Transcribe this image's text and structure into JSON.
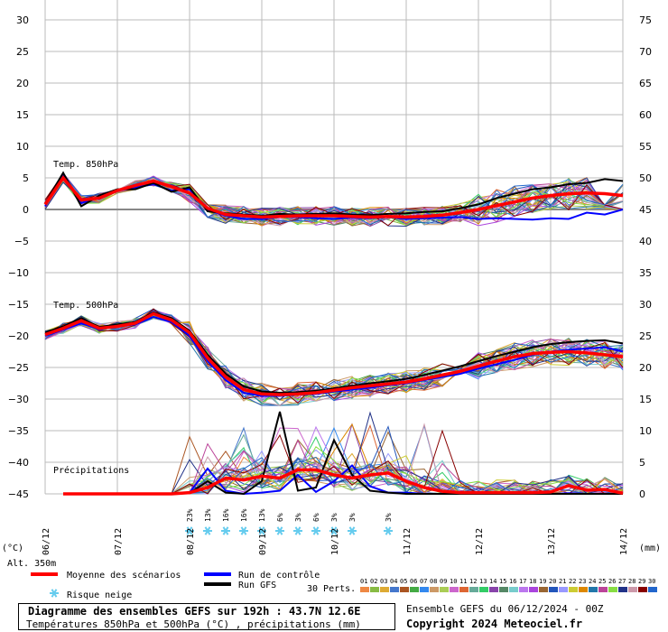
{
  "chart_data": {
    "type": "line",
    "x_tick_labels": [
      "07/12",
      "08/12",
      "09/12",
      "10/12",
      "11/12",
      "12/12",
      "13/12",
      "14/12"
    ],
    "x_first_label": "06/12",
    "left_axis_unit": "(°C)",
    "right_axis_unit": "(mm)",
    "left_ticks": [
      30,
      25,
      20,
      15,
      10,
      5,
      0,
      -5,
      -10,
      -15,
      -20,
      -25,
      -30,
      -35,
      -40,
      -45
    ],
    "right_ticks": [
      75,
      70,
      65,
      60,
      55,
      50,
      45,
      40,
      35,
      30,
      25,
      20,
      15,
      10,
      5,
      0
    ],
    "left_range": [
      -45,
      30
    ],
    "right_range": [
      0,
      75
    ],
    "altitude_label": "Alt. 350m",
    "section_labels": {
      "t850": "Temp. 850hPa",
      "t500": "Temp. 500hPa",
      "precip": "Précipitations"
    },
    "colors": {
      "mean": "#ff0000",
      "control": "#0000ff",
      "gfs": "#000000",
      "snow": "#66ccee"
    },
    "snow_risk": [
      {
        "t": 2.25,
        "label": "23%"
      },
      {
        "t": 2.5,
        "label": "13%"
      },
      {
        "t": 2.75,
        "label": "16%"
      },
      {
        "t": 3.0,
        "label": "16%"
      },
      {
        "t": 3.25,
        "label": "13%"
      },
      {
        "t": 3.5,
        "label": "6%"
      },
      {
        "t": 3.75,
        "label": "3%"
      },
      {
        "t": 4.0,
        "label": "6%"
      },
      {
        "t": 4.25,
        "label": "3%"
      },
      {
        "t": 4.5,
        "label": "3%"
      },
      {
        "t": 5.0,
        "label": "3%"
      }
    ],
    "series": {
      "t850_mean": [
        [
          0,
          0.8
        ],
        [
          0.25,
          5
        ],
        [
          0.5,
          1.5
        ],
        [
          0.75,
          1.8
        ],
        [
          1,
          3
        ],
        [
          1.25,
          3.8
        ],
        [
          1.5,
          4.5
        ],
        [
          1.75,
          3.6
        ],
        [
          2,
          2.6
        ],
        [
          2.25,
          0.2
        ],
        [
          2.5,
          -0.8
        ],
        [
          2.75,
          -1
        ],
        [
          3,
          -1.2
        ],
        [
          3.25,
          -1.1
        ],
        [
          3.5,
          -1
        ],
        [
          3.75,
          -1
        ],
        [
          4,
          -1
        ],
        [
          4.25,
          -1.1
        ],
        [
          4.5,
          -1.2
        ],
        [
          4.75,
          -1.1
        ],
        [
          5,
          -1.2
        ],
        [
          5.25,
          -1.1
        ],
        [
          5.5,
          -0.9
        ],
        [
          5.75,
          -0.5
        ],
        [
          6,
          0
        ],
        [
          6.25,
          0.6
        ],
        [
          6.5,
          1.2
        ],
        [
          6.75,
          1.8
        ],
        [
          7,
          2.2
        ],
        [
          7.25,
          2.5
        ],
        [
          7.5,
          2.6
        ],
        [
          7.75,
          2.5
        ],
        [
          8,
          2.2
        ]
      ],
      "t850_control": [
        [
          0,
          0.5
        ],
        [
          0.25,
          5.5
        ],
        [
          0.5,
          1
        ],
        [
          0.75,
          2
        ],
        [
          1,
          3
        ],
        [
          1.25,
          3.5
        ],
        [
          1.5,
          4
        ],
        [
          1.75,
          3
        ],
        [
          2,
          3.2
        ],
        [
          2.25,
          0
        ],
        [
          2.5,
          -1
        ],
        [
          2.75,
          -1.5
        ],
        [
          3,
          -1.5
        ],
        [
          3.25,
          -1.2
        ],
        [
          3.5,
          -1.2
        ],
        [
          3.75,
          -1.4
        ],
        [
          4,
          -1.5
        ],
        [
          4.25,
          -1.3
        ],
        [
          4.5,
          -1.4
        ],
        [
          4.75,
          -1.2
        ],
        [
          5,
          -1.5
        ],
        [
          5.25,
          -1.4
        ],
        [
          5.5,
          -1.3
        ],
        [
          5.75,
          -1.2
        ],
        [
          6,
          -1.5
        ],
        [
          6.25,
          -1.4
        ],
        [
          6.5,
          -1.5
        ],
        [
          6.75,
          -1.6
        ],
        [
          7,
          -1.4
        ],
        [
          7.25,
          -1.5
        ],
        [
          7.5,
          -0.5
        ],
        [
          7.75,
          -0.8
        ],
        [
          8,
          0
        ]
      ],
      "t850_gfs": [
        [
          0,
          1
        ],
        [
          0.25,
          5.8
        ],
        [
          0.5,
          0.5
        ],
        [
          0.75,
          2.2
        ],
        [
          1,
          3.2
        ],
        [
          1.25,
          3.2
        ],
        [
          1.5,
          4.2
        ],
        [
          1.75,
          2.8
        ],
        [
          2,
          3.5
        ],
        [
          2.25,
          -0.3
        ],
        [
          2.5,
          -0.6
        ],
        [
          2.75,
          -0.8
        ],
        [
          3,
          -1
        ],
        [
          3.25,
          -0.7
        ],
        [
          3.5,
          -0.8
        ],
        [
          3.75,
          -0.7
        ],
        [
          4,
          -0.6
        ],
        [
          4.25,
          -0.8
        ],
        [
          4.5,
          -0.9
        ],
        [
          4.75,
          -0.7
        ],
        [
          5,
          -0.6
        ],
        [
          5.25,
          -0.4
        ],
        [
          5.5,
          -0.3
        ],
        [
          5.75,
          0.2
        ],
        [
          6,
          0.8
        ],
        [
          6.25,
          1.8
        ],
        [
          6.5,
          2.5
        ],
        [
          6.75,
          3.2
        ],
        [
          7,
          3.5
        ],
        [
          7.25,
          4
        ],
        [
          7.5,
          4.2
        ],
        [
          7.75,
          4.8
        ],
        [
          8,
          4.5
        ]
      ],
      "t500_mean": [
        [
          0,
          -19.8
        ],
        [
          0.25,
          -18.8
        ],
        [
          0.5,
          -17.6
        ],
        [
          0.75,
          -18.8
        ],
        [
          1,
          -18.5
        ],
        [
          1.25,
          -18
        ],
        [
          1.5,
          -16.5
        ],
        [
          1.75,
          -17.5
        ],
        [
          2,
          -19.5
        ],
        [
          2.25,
          -23.5
        ],
        [
          2.5,
          -26.5
        ],
        [
          2.75,
          -28.5
        ],
        [
          3,
          -29.2
        ],
        [
          3.25,
          -29.3
        ],
        [
          3.5,
          -29.2
        ],
        [
          3.75,
          -29
        ],
        [
          4,
          -28.6
        ],
        [
          4.25,
          -28.2
        ],
        [
          4.5,
          -27.9
        ],
        [
          4.75,
          -27.6
        ],
        [
          5,
          -27.3
        ],
        [
          5.25,
          -26.8
        ],
        [
          5.5,
          -26.2
        ],
        [
          5.75,
          -25.6
        ],
        [
          6,
          -24.8
        ],
        [
          6.25,
          -24
        ],
        [
          6.5,
          -23.3
        ],
        [
          6.75,
          -22.8
        ],
        [
          7,
          -22.6
        ],
        [
          7.25,
          -22.5
        ],
        [
          7.5,
          -22.7
        ],
        [
          7.75,
          -23
        ],
        [
          8,
          -23.3
        ]
      ],
      "t500_control": [
        [
          0,
          -20
        ],
        [
          0.25,
          -19
        ],
        [
          0.5,
          -18
        ],
        [
          0.75,
          -19
        ],
        [
          1,
          -18.5
        ],
        [
          1.25,
          -18.2
        ],
        [
          1.5,
          -17
        ],
        [
          1.75,
          -17.8
        ],
        [
          2,
          -20
        ],
        [
          2.25,
          -24
        ],
        [
          2.5,
          -27
        ],
        [
          2.75,
          -29
        ],
        [
          3,
          -29.5
        ],
        [
          3.25,
          -29.5
        ],
        [
          3.5,
          -29.3
        ],
        [
          3.75,
          -29.2
        ],
        [
          4,
          -28.8
        ],
        [
          4.25,
          -28.5
        ],
        [
          4.5,
          -28.2
        ],
        [
          4.75,
          -27.8
        ],
        [
          5,
          -27.5
        ],
        [
          5.25,
          -27
        ],
        [
          5.5,
          -26.5
        ],
        [
          5.75,
          -26
        ],
        [
          6,
          -25.2
        ],
        [
          6.25,
          -24.5
        ],
        [
          6.5,
          -23.8
        ],
        [
          6.75,
          -23
        ],
        [
          7,
          -22.5
        ],
        [
          7.25,
          -22.2
        ],
        [
          7.5,
          -22
        ],
        [
          7.75,
          -21.8
        ],
        [
          8,
          -22.5
        ]
      ],
      "t500_gfs": [
        [
          0,
          -19.5
        ],
        [
          0.25,
          -18.5
        ],
        [
          0.5,
          -17.2
        ],
        [
          0.75,
          -18.6
        ],
        [
          1,
          -18.2
        ],
        [
          1.25,
          -17.8
        ],
        [
          1.5,
          -16.3
        ],
        [
          1.75,
          -17.2
        ],
        [
          2,
          -19.2
        ],
        [
          2.25,
          -23
        ],
        [
          2.5,
          -26
        ],
        [
          2.75,
          -28
        ],
        [
          3,
          -28.8
        ],
        [
          3.25,
          -29
        ],
        [
          3.5,
          -28.9
        ],
        [
          3.75,
          -28.7
        ],
        [
          4,
          -28.3
        ],
        [
          4.25,
          -27.9
        ],
        [
          4.5,
          -27.5
        ],
        [
          4.75,
          -27.2
        ],
        [
          5,
          -26.8
        ],
        [
          5.25,
          -26.2
        ],
        [
          5.5,
          -25.5
        ],
        [
          5.75,
          -24.8
        ],
        [
          6,
          -24
        ],
        [
          6.25,
          -23.2
        ],
        [
          6.5,
          -22.5
        ],
        [
          6.75,
          -21.8
        ],
        [
          7,
          -21.3
        ],
        [
          7.25,
          -21
        ],
        [
          7.5,
          -20.8
        ],
        [
          7.75,
          -20.7
        ],
        [
          8,
          -21.2
        ]
      ],
      "precip_mean": [
        [
          0.25,
          0
        ],
        [
          1,
          0
        ],
        [
          1.75,
          0
        ],
        [
          2,
          0.2
        ],
        [
          2.25,
          1
        ],
        [
          2.5,
          2.5
        ],
        [
          2.75,
          2.2
        ],
        [
          3,
          2.8
        ],
        [
          3.25,
          2.5
        ],
        [
          3.5,
          3.8
        ],
        [
          3.75,
          3.8
        ],
        [
          4,
          3
        ],
        [
          4.25,
          2.5
        ],
        [
          4.5,
          3
        ],
        [
          4.75,
          3.3
        ],
        [
          5,
          2
        ],
        [
          5.25,
          1
        ],
        [
          5.5,
          0.4
        ],
        [
          5.75,
          0.2
        ],
        [
          6,
          0.2
        ],
        [
          6.25,
          0.2
        ],
        [
          6.5,
          0.2
        ],
        [
          6.75,
          0.2
        ],
        [
          7,
          0.3
        ],
        [
          7.25,
          1.3
        ],
        [
          7.5,
          0.6
        ],
        [
          7.75,
          0.7
        ],
        [
          8,
          0.1
        ]
      ],
      "precip_control": [
        [
          0.25,
          0
        ],
        [
          1,
          0
        ],
        [
          1.75,
          0
        ],
        [
          2,
          0.2
        ],
        [
          2.25,
          4
        ],
        [
          2.5,
          0.5
        ],
        [
          2.75,
          0
        ],
        [
          3,
          0.2
        ],
        [
          3.25,
          0.5
        ],
        [
          3.5,
          3
        ],
        [
          3.75,
          0.3
        ],
        [
          4,
          2
        ],
        [
          4.25,
          4.5
        ],
        [
          4.5,
          1.2
        ],
        [
          4.75,
          0.2
        ],
        [
          5,
          0.2
        ],
        [
          5.25,
          0
        ],
        [
          5.5,
          0
        ],
        [
          5.75,
          0
        ],
        [
          6,
          0
        ],
        [
          6.25,
          0
        ],
        [
          6.5,
          0
        ],
        [
          6.75,
          0
        ],
        [
          7,
          0
        ],
        [
          7.25,
          0.1
        ],
        [
          7.5,
          0
        ],
        [
          7.75,
          0
        ],
        [
          8,
          0
        ]
      ],
      "precip_gfs": [
        [
          0.25,
          0
        ],
        [
          1,
          0
        ],
        [
          1.75,
          0
        ],
        [
          2,
          0.1
        ],
        [
          2.25,
          2
        ],
        [
          2.5,
          0.2
        ],
        [
          2.75,
          0
        ],
        [
          3,
          2
        ],
        [
          3.25,
          13
        ],
        [
          3.5,
          0.5
        ],
        [
          3.75,
          1
        ],
        [
          4,
          8.5
        ],
        [
          4.25,
          3
        ],
        [
          4.5,
          0.5
        ],
        [
          4.75,
          0.2
        ],
        [
          5,
          0
        ],
        [
          5.25,
          0
        ],
        [
          5.5,
          0
        ],
        [
          5.75,
          0
        ],
        [
          6,
          0
        ],
        [
          6.25,
          0
        ],
        [
          6.5,
          0
        ],
        [
          6.75,
          0
        ],
        [
          7,
          0
        ],
        [
          7.25,
          0
        ],
        [
          7.5,
          0
        ],
        [
          7.75,
          0
        ],
        [
          8,
          0
        ]
      ]
    }
  },
  "legend": {
    "mean": "Moyenne des scénarios",
    "control": "Run de contrôle",
    "gfs": "Run GFS",
    "snow": "Risque neige",
    "perts_label": "30 Perts.",
    "pert_numbers": [
      "01",
      "02",
      "03",
      "04",
      "05",
      "06",
      "07",
      "08",
      "09",
      "10",
      "11",
      "12",
      "13",
      "14",
      "15",
      "16",
      "17",
      "18",
      "19",
      "20",
      "21",
      "22",
      "23",
      "24",
      "25",
      "26",
      "27",
      "28",
      "29",
      "30"
    ],
    "pert_colors": [
      "#ee8844",
      "#88bb44",
      "#ddaa33",
      "#4477cc",
      "#aa5522",
      "#44aa44",
      "#3388ee",
      "#cc9966",
      "#aacc55",
      "#cc66cc",
      "#dd6633",
      "#66aa99",
      "#33cc66",
      "#8844aa",
      "#558866",
      "#77cccc",
      "#bb77ee",
      "#aa44dd",
      "#996633",
      "#2255bb",
      "#9999ff",
      "#cccc33",
      "#dd8800",
      "#2277aa",
      "#bb4499",
      "#88dd44",
      "#223388",
      "#cc99aa",
      "#880000",
      "#2266cc"
    ]
  },
  "footer": {
    "title": "Diagramme des ensembles GEFS sur 192h : 43.7N 12.6E",
    "subtitle": "Températures 850hPa et 500hPa (°C) , précipitations (mm)",
    "ensemble_info": "Ensemble GEFS du 06/12/2024 - 00Z",
    "copyright": "Copyright 2024 Meteociel.fr"
  }
}
